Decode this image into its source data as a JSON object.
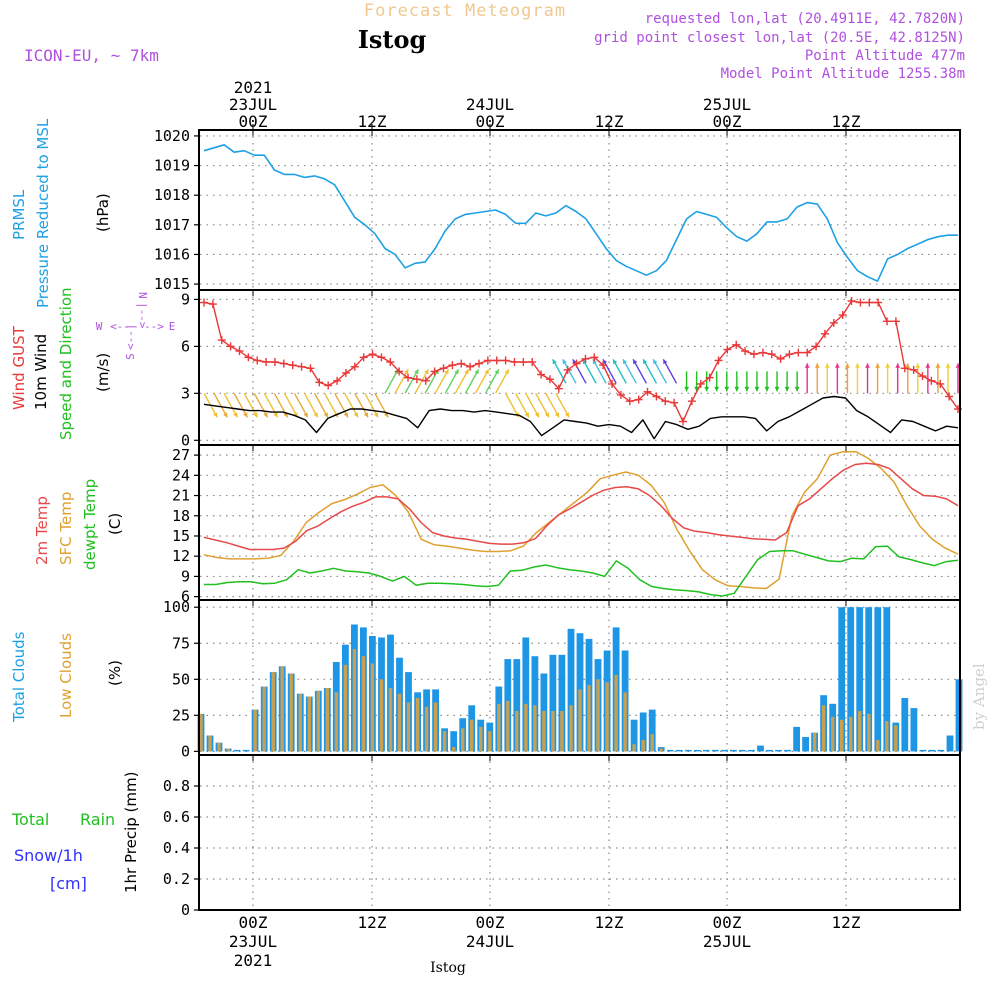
{
  "header": {
    "title_faded": "Forecast Meteogram",
    "station": "Istog",
    "model": "ICON-EU, ~ 7km",
    "requested": "requested lon,lat (20.4911E, 42.7820N)",
    "gridpoint": "grid point closest lon,lat (20.5E, 42.8125N)",
    "point_alt": "Point Altitude 477m",
    "model_alt": "Model Point Altitude 1255.38m",
    "footer_station": "Istog",
    "watermark": "by Angel"
  },
  "time_axis": {
    "year": "2021",
    "day_labels": [
      "23JUL",
      "24JUL",
      "25JUL"
    ],
    "hour_labels": [
      "00Z",
      "12Z",
      "00Z",
      "12Z",
      "00Z",
      "12Z"
    ]
  },
  "colors": {
    "prmsl": "#1ea0e6",
    "gust": "#e83838",
    "wind": "#000000",
    "temp2m": "#e84848",
    "sfc": "#e0a030",
    "dewpt": "#20c020",
    "total_cloud": "#1e96e6",
    "low_cloud": "#c8a050",
    "rain": "#20c020",
    "snow": "#3030ff",
    "info": "#b050e0",
    "faded": "#f0c890"
  },
  "panel_labels": {
    "prmsl": [
      "PRMSL",
      "Pressure Reduced to MSL"
    ],
    "prmsl_unit": "(hPa)",
    "wind": [
      "Wind GUST",
      "10m Wind",
      "Speed and Direction"
    ],
    "wind_unit": "(m/s)",
    "compass": {
      "n": "N",
      "s": "S",
      "w": "W",
      "e": "E",
      "wl": "<--",
      "el": "-->",
      "nl": "|-->",
      "sl": "<--|"
    },
    "temp": [
      "2m Temp",
      "SFC Temp",
      "dewpt Temp"
    ],
    "temp_unit": "(C)",
    "cloud": [
      "Total Clouds",
      "Low Clouds"
    ],
    "cloud_unit": "(%)",
    "precip": [
      "Total",
      "Rain",
      "Snow/1h",
      "[cm]"
    ],
    "precip_unit": "1hr Precip (mm)"
  },
  "chart_data": [
    {
      "type": "line",
      "name": "prmsl",
      "ylim": [
        1014.8,
        1020.2
      ],
      "yticks": [
        1015,
        1016,
        1017,
        1018,
        1019,
        1020
      ],
      "series": [
        {
          "name": "PRMSL",
          "values": [
            1019.5,
            1019.6,
            1019.7,
            1019.45,
            1019.5,
            1019.35,
            1019.35,
            1018.85,
            1018.7,
            1018.7,
            1018.6,
            1018.65,
            1018.55,
            1018.35,
            1017.8,
            1017.25,
            1017.0,
            1016.7,
            1016.2,
            1016.0,
            1015.55,
            1015.7,
            1015.75,
            1016.2,
            1016.8,
            1017.2,
            1017.35,
            1017.4,
            1017.45,
            1017.5,
            1017.35,
            1017.05,
            1017.05,
            1017.4,
            1017.3,
            1017.4,
            1017.65,
            1017.45,
            1017.2,
            1016.7,
            1016.2,
            1015.8,
            1015.6,
            1015.45,
            1015.3,
            1015.45,
            1015.8,
            1016.5,
            1017.2,
            1017.45,
            1017.35,
            1017.25,
            1016.9,
            1016.6,
            1016.45,
            1016.7,
            1017.1,
            1017.1,
            1017.2,
            1017.6,
            1017.75,
            1017.7,
            1017.2,
            1016.4,
            1015.9,
            1015.45,
            1015.25,
            1015.1,
            1015.85,
            1016.0,
            1016.2,
            1016.35,
            1016.5,
            1016.6,
            1016.65,
            1016.65
          ]
        }
      ]
    },
    {
      "type": "line",
      "name": "wind",
      "ylim": [
        -0.3,
        9.6
      ],
      "yticks": [
        0,
        3,
        6,
        9
      ],
      "series": [
        {
          "name": "Wind GUST",
          "values": [
            8.8,
            8.7,
            6.4,
            6.0,
            5.7,
            5.3,
            5.1,
            5.0,
            5.0,
            4.9,
            4.8,
            4.7,
            4.6,
            3.7,
            3.5,
            3.8,
            4.3,
            4.7,
            5.3,
            5.5,
            5.3,
            5.0,
            4.4,
            4.0,
            3.9,
            3.8,
            4.4,
            4.6,
            4.8,
            4.9,
            4.7,
            4.9,
            5.1,
            5.1,
            5.1,
            5.0,
            5.0,
            5.0,
            4.2,
            3.9,
            3.3,
            4.5,
            4.9,
            5.2,
            5.3,
            4.8,
            3.6,
            2.9,
            2.5,
            2.6,
            3.1,
            2.8,
            2.5,
            2.4,
            1.2,
            2.5,
            3.6,
            4.0,
            5.1,
            5.8,
            6.1,
            5.7,
            5.5,
            5.6,
            5.5,
            5.2,
            5.5,
            5.6,
            5.6,
            6.0,
            6.8,
            7.5,
            8.0,
            8.9,
            8.8,
            8.8,
            8.8,
            7.6,
            7.6,
            4.6,
            4.5,
            4.1,
            3.8,
            3.6,
            2.8,
            2.0
          ]
        },
        {
          "name": "10m Wind",
          "values": [
            2.3,
            2.2,
            2.1,
            2.0,
            1.9,
            1.9,
            1.8,
            1.8,
            1.6,
            1.3,
            0.5,
            1.4,
            1.7,
            2.0,
            2.0,
            1.9,
            1.8,
            1.6,
            1.4,
            0.8,
            1.9,
            2.0,
            1.9,
            1.9,
            1.8,
            1.9,
            1.8,
            1.7,
            1.6,
            1.2,
            0.3,
            0.8,
            1.3,
            1.2,
            1.1,
            0.9,
            1.0,
            0.9,
            0.5,
            1.3,
            0.1,
            1.2,
            1.0,
            0.7,
            0.9,
            1.4,
            1.5,
            1.5,
            1.5,
            1.4,
            0.6,
            1.2,
            1.5,
            1.9,
            2.3,
            2.7,
            2.8,
            2.7,
            1.9,
            1.5,
            1.0,
            0.5,
            1.3,
            1.2,
            0.9,
            0.6,
            0.9,
            0.8
          ]
        }
      ],
      "wind_arrows": {
        "base_value": 3.0,
        "segments": [
          {
            "range": [
              0,
              18
            ],
            "dir": "SE",
            "colors": [
              "#f0c030",
              "#e8a838"
            ]
          },
          {
            "range": [
              18,
              30
            ],
            "dir": "NE",
            "colors": [
              "#60d060",
              "#f0c030"
            ]
          },
          {
            "range": [
              30,
              36
            ],
            "dir": "SE",
            "colors": [
              "#f0c030"
            ]
          },
          {
            "range": [
              36,
              48
            ],
            "dir": "NW",
            "colors": [
              "#20c0c0",
              "#40c0e0",
              "#6040e0"
            ]
          },
          {
            "range": [
              48,
              60
            ],
            "dir": "S",
            "colors": [
              "#20c020"
            ]
          },
          {
            "range": [
              60,
              76
            ],
            "dir": "N",
            "colors": [
              "#e83090",
              "#f0a030",
              "#f0d030"
            ]
          }
        ]
      }
    },
    {
      "type": "line",
      "name": "temperature",
      "ylim": [
        5.5,
        28.5
      ],
      "yticks": [
        6,
        9,
        12,
        15,
        18,
        21,
        24,
        27
      ],
      "series": [
        {
          "name": "2m Temp",
          "values": [
            14.8,
            14.4,
            14.0,
            13.5,
            13.0,
            13.0,
            13.0,
            13.2,
            14.2,
            15.8,
            16.5,
            17.6,
            18.6,
            19.4,
            20.0,
            20.8,
            20.8,
            20.5,
            19.0,
            17.0,
            15.5,
            15.0,
            14.7,
            14.5,
            14.2,
            13.9,
            13.8,
            13.8,
            14.0,
            14.6,
            16.5,
            18.1,
            19.0,
            20.0,
            21.0,
            21.8,
            22.2,
            22.3,
            22.0,
            21.0,
            19.5,
            17.6,
            16.2,
            15.7,
            15.5,
            15.2,
            15.0,
            14.8,
            14.6,
            14.5,
            14.4,
            15.5,
            19.5,
            20.5,
            22.0,
            23.5,
            24.8,
            25.6,
            25.8,
            25.6,
            25.0,
            23.5,
            22.0,
            21.0,
            20.9,
            20.5,
            19.5
          ]
        },
        {
          "name": "SFC Temp",
          "values": [
            12.2,
            11.8,
            11.6,
            11.6,
            11.6,
            11.7,
            12.1,
            14.2,
            17.0,
            18.5,
            19.8,
            20.4,
            21.2,
            22.2,
            22.6,
            21.0,
            18.5,
            14.5,
            13.7,
            13.5,
            13.2,
            12.9,
            12.7,
            12.7,
            12.8,
            13.5,
            15.5,
            17.0,
            18.5,
            20.0,
            21.5,
            23.5,
            24.0,
            24.5,
            24.0,
            22.5,
            20.0,
            16.0,
            12.8,
            10.0,
            8.5,
            7.6,
            7.5,
            7.3,
            7.2,
            8.6,
            18.0,
            21.5,
            23.5,
            27.0,
            27.5,
            27.5,
            26.5,
            25.0,
            23.0,
            19.5,
            16.5,
            14.5,
            13.2,
            12.3
          ]
        },
        {
          "name": "dewpt Temp",
          "values": [
            7.8,
            7.8,
            8.1,
            8.2,
            8.2,
            7.9,
            8.0,
            8.5,
            10.0,
            9.5,
            9.8,
            10.2,
            9.8,
            9.7,
            9.5,
            9.0,
            8.3,
            9.0,
            7.7,
            8.0,
            8.0,
            7.9,
            7.8,
            7.6,
            7.5,
            7.7,
            9.8,
            9.9,
            10.4,
            10.7,
            10.3,
            10.0,
            9.8,
            9.5,
            9.0,
            11.3,
            10.2,
            8.5,
            7.5,
            7.2,
            7.0,
            6.9,
            6.7,
            6.3,
            6.1,
            6.5,
            9.0,
            11.5,
            12.7,
            12.8,
            12.8,
            12.3,
            11.8,
            11.3,
            11.2,
            11.7,
            11.6,
            13.4,
            13.5,
            11.9,
            11.5,
            11.0,
            10.6,
            11.2,
            11.4
          ]
        }
      ]
    },
    {
      "type": "bar",
      "name": "clouds",
      "ylim": [
        -2.5,
        105
      ],
      "yticks": [
        0,
        25,
        50,
        75,
        100
      ],
      "series": [
        {
          "name": "Total Clouds",
          "values": [
            26,
            11,
            6,
            2,
            0,
            0,
            29,
            45,
            55,
            59,
            54,
            40,
            38,
            42,
            44,
            62,
            74,
            88,
            86,
            80,
            79,
            81,
            65,
            55,
            41,
            43,
            43,
            16,
            14,
            23,
            32,
            22,
            20,
            45,
            64,
            64,
            79,
            66,
            54,
            67,
            67,
            85,
            82,
            78,
            64,
            70,
            86,
            70,
            22,
            27,
            29,
            3,
            0,
            0,
            0,
            0,
            0,
            0,
            0,
            0,
            0,
            0,
            4,
            0,
            0,
            0,
            17,
            10,
            13,
            39,
            33,
            100,
            100,
            100,
            100,
            100,
            100,
            20,
            37,
            30,
            0,
            0,
            0,
            11,
            50
          ]
        },
        {
          "name": "Low Clouds",
          "values": [
            26,
            11,
            6,
            2,
            0,
            0,
            29,
            45,
            55,
            59,
            54,
            40,
            38,
            42,
            44,
            41,
            60,
            71,
            66,
            61,
            50,
            44,
            40,
            34,
            37,
            31,
            34,
            14,
            3,
            16,
            22,
            17,
            14,
            33,
            35,
            28,
            33,
            32,
            28,
            28,
            28,
            32,
            43,
            46,
            50,
            48,
            53,
            41,
            5,
            8,
            12,
            2,
            0,
            0,
            0,
            0,
            0,
            0,
            0,
            0,
            0,
            0,
            0,
            0,
            0,
            0,
            0,
            0,
            13,
            32,
            24,
            22,
            24,
            28,
            26,
            8,
            21,
            18,
            0,
            0,
            0,
            0,
            0,
            0,
            0
          ]
        }
      ]
    },
    {
      "type": "bar",
      "name": "precip",
      "ylim": [
        0,
        1.0
      ],
      "yticks": [
        0,
        0.2,
        0.4,
        0.6,
        0.8
      ],
      "series": [
        {
          "name": "1hr Precip",
          "values": []
        }
      ]
    }
  ]
}
